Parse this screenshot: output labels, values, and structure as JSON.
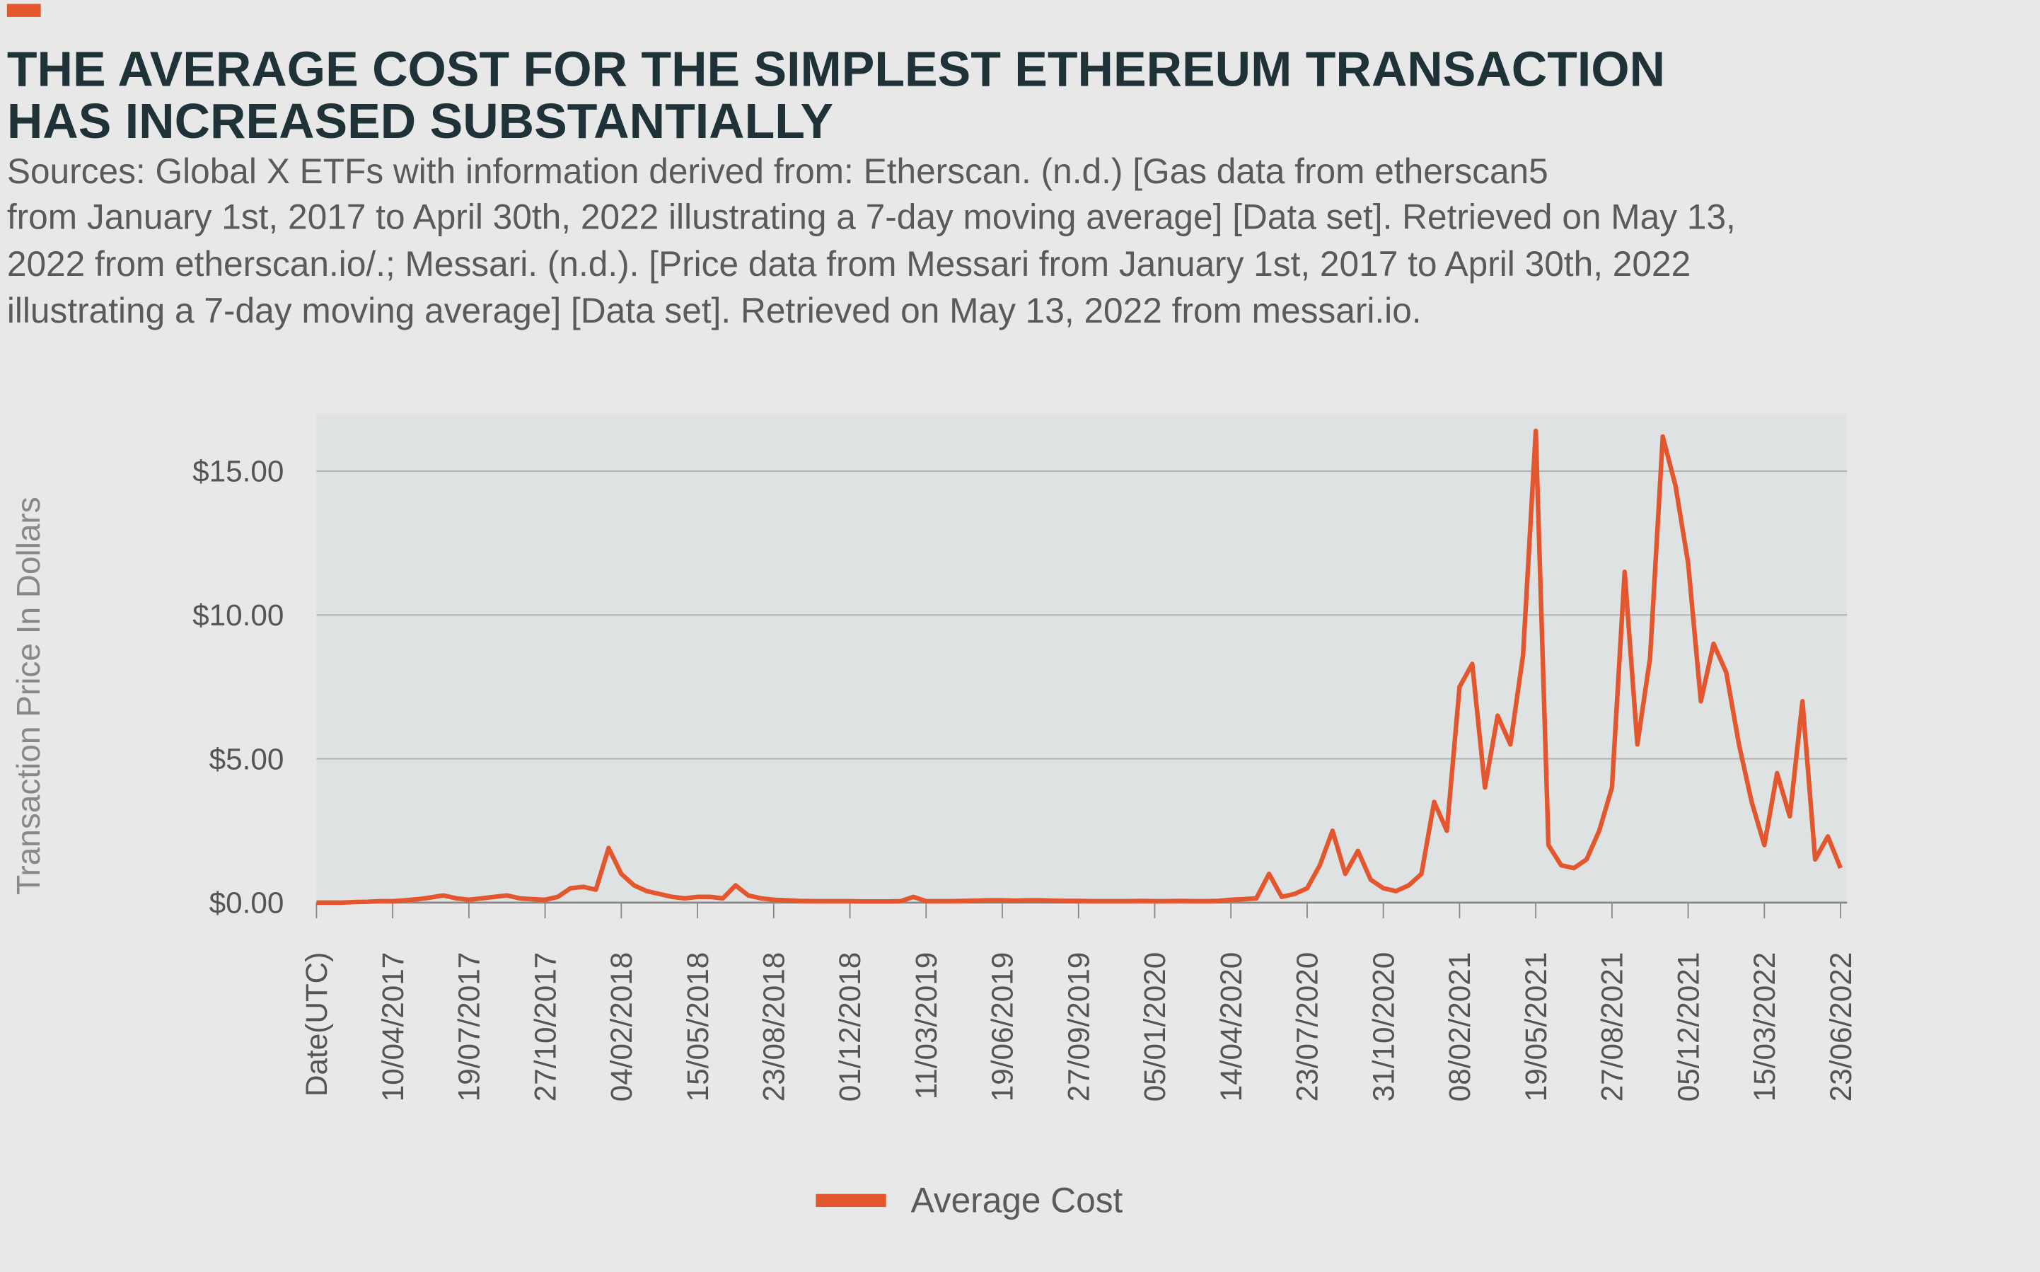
{
  "chart_data": {
    "type": "line",
    "title": [
      "THE AVERAGE COST FOR THE SIMPLEST ETHEREUM TRANSACTION",
      "HAS INCREASED SUBSTANTIALLY"
    ],
    "subtitle": [
      "Sources: Global X ETFs with information derived from: Etherscan. (n.d.) [Gas data from etherscan5",
      "from January 1st, 2017 to April 30th, 2022 illustrating a 7-day moving average] [Data set]. Retrieved on May 13,",
      "2022 from etherscan.io/.; Messari. (n.d.). [Price data from Messari from January 1st, 2017 to April 30th, 2022",
      "illustrating a 7-day moving average] [Data set]. Retrieved on May 13, 2022 from messari.io."
    ],
    "y_label": "Transaction Price In Dollars",
    "categories": [
      "Date(UTC)",
      null,
      null,
      null,
      null,
      null,
      "10/04/2017",
      null,
      null,
      null,
      null,
      null,
      "19/07/2017",
      null,
      null,
      null,
      null,
      null,
      "27/10/2017",
      null,
      null,
      null,
      null,
      null,
      "04/02/2018",
      null,
      null,
      null,
      null,
      null,
      "15/05/2018",
      null,
      null,
      null,
      null,
      null,
      "23/08/2018",
      null,
      null,
      null,
      null,
      null,
      "01/12/2018",
      null,
      null,
      null,
      null,
      null,
      "11/03/2019",
      null,
      null,
      null,
      null,
      null,
      "19/06/2019",
      null,
      null,
      null,
      null,
      null,
      "27/09/2019",
      null,
      null,
      null,
      null,
      null,
      "05/01/2020",
      null,
      null,
      null,
      null,
      null,
      "14/04/2020",
      null,
      null,
      null,
      null,
      null,
      "23/07/2020",
      null,
      null,
      null,
      null,
      null,
      "31/10/2020",
      null,
      null,
      null,
      null,
      null,
      "08/02/2021",
      null,
      null,
      null,
      null,
      null,
      "19/05/2021",
      null,
      null,
      null,
      null,
      null,
      "27/08/2021",
      null,
      null,
      null,
      null,
      null,
      "05/12/2021",
      null,
      null,
      null,
      null,
      null,
      "15/03/2022",
      null,
      null,
      null,
      null,
      null,
      "23/06/2022"
    ],
    "series": [
      {
        "name": "Average Cost",
        "color": "#e4572e",
        "values": [
          0,
          0,
          0,
          0.02,
          0.03,
          0.05,
          0.05,
          0.08,
          0.12,
          0.18,
          0.25,
          0.15,
          0.1,
          0.15,
          0.2,
          0.25,
          0.15,
          0.12,
          0.1,
          0.2,
          0.5,
          0.55,
          0.45,
          1.9,
          1.0,
          0.6,
          0.4,
          0.3,
          0.2,
          0.15,
          0.2,
          0.2,
          0.15,
          0.6,
          0.25,
          0.15,
          0.1,
          0.08,
          0.06,
          0.05,
          0.05,
          0.05,
          0.05,
          0.04,
          0.04,
          0.04,
          0.05,
          0.2,
          0.05,
          0.05,
          0.05,
          0.06,
          0.07,
          0.08,
          0.08,
          0.07,
          0.08,
          0.08,
          0.07,
          0.06,
          0.06,
          0.05,
          0.05,
          0.05,
          0.05,
          0.06,
          0.05,
          0.05,
          0.06,
          0.05,
          0.05,
          0.06,
          0.1,
          0.12,
          0.15,
          1.0,
          0.2,
          0.3,
          0.5,
          1.3,
          2.5,
          1.0,
          1.8,
          0.8,
          0.5,
          0.4,
          0.6,
          1.0,
          3.5,
          2.5,
          7.5,
          8.3,
          4.0,
          6.5,
          5.5,
          8.6,
          16.4,
          2.0,
          1.3,
          1.2,
          1.5,
          2.5,
          4.0,
          11.5,
          5.5,
          8.5,
          16.2,
          14.5,
          11.8,
          7.0,
          9.0,
          8.0,
          5.5,
          3.5,
          2.0,
          4.5,
          3.0,
          7.0,
          1.5,
          2.3,
          1.2
        ]
      }
    ],
    "ylim": [
      0,
      17
    ],
    "yticks": [
      {
        "value": 0,
        "label": "$0.00"
      },
      {
        "value": 5,
        "label": "$5.00"
      },
      {
        "value": 10,
        "label": "$10.00"
      },
      {
        "value": 15,
        "label": "$15.00"
      }
    ],
    "grid": true
  }
}
